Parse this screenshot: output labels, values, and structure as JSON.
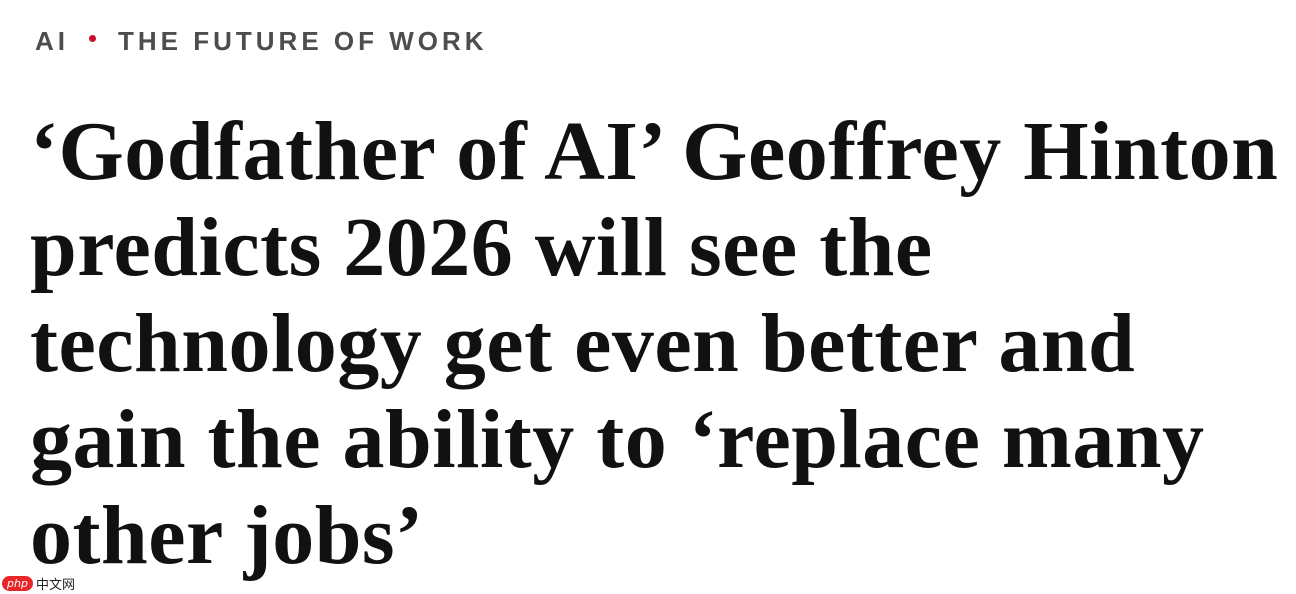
{
  "kicker": {
    "section": "AI",
    "topic": "THE FUTURE OF WORK",
    "dot_color": "#c8102e"
  },
  "headline": {
    "lines": [
      "‘Godfather of AI’ Geoffrey Hinton",
      "predicts 2026 will see the",
      "technology get even better and",
      "gain the ability to ‘replace many",
      "other jobs’"
    ]
  },
  "watermark": {
    "logo": "php",
    "text": "中文网"
  }
}
